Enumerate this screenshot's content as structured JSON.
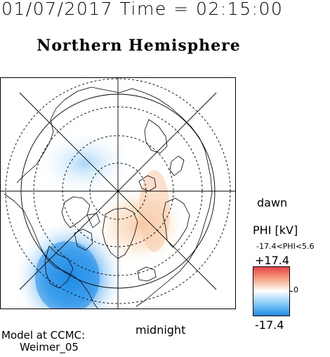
{
  "header": {
    "datetime": "01/07/2017 Time = 02:15:00",
    "title": "Northern Hemisphere"
  },
  "map": {
    "dawn_label": "dawn",
    "midnight_label": "midnight",
    "projection": "polar stereographic, north pole",
    "features": [
      "coastlines",
      "latitude-circles-dashed",
      "longitude-lines",
      "electric-potential-overlay"
    ]
  },
  "colorbar": {
    "title": "PHI [kV]",
    "range_text": "-17.4<PHI<5.6",
    "max_label": "+17.4",
    "min_label": "-17.4",
    "zero_label": "0",
    "colors": {
      "positive": "#e8424a",
      "neutral": "#ffffff",
      "negative": "#1e8ce8"
    }
  },
  "credit": {
    "line1": "Model at CCMC:",
    "line2": "Weimer_05"
  }
}
